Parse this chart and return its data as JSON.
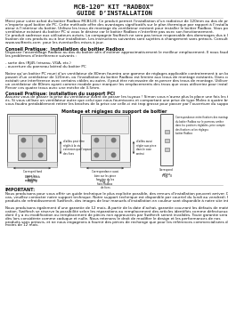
{
  "title1": "MCB-120™ KIT “RADBOX”",
  "title2": "GUIDE D’INSTALLATION",
  "bg_color": "#ffffff",
  "text_color": "#111111",
  "body_lines": [
    "Merci pour votre achat du boitier Radbox MCB120. Ce produit permet l’installation d’un radiateur de 120mm au dos de pratiquement",
    "n’importe quel boitier de PC. Cette méthode offre des avantages significatifs sur le plan thermique par rapport à l’installation du radi-",
    "ateur à l’intérieur du boitier. Utilisez les trous de montage du ventilateur existant pour installer le boitier Radbox. Vous pouvez laisser le",
    "ventilateur existant du boitier PC si vous le désirez car le boitier Radbox n’interfère pas avec son fonctionnement.",
    "Ce produit sadresse aux utilisateurs avisés. La compagnie Swiftech ne sera pas tenue responsable des dommages dus à l’uti-",
    "lisation de ces produits ou à leur installation. Les instructions suivantes sont sujettes à changement sans préavis. Consultez notre site",
    "www.swiftnets.com  pour les éventuelles mises à jour."
  ],
  "conseil1_title": "Conseil Pratique:  Installation du boitier Radbox",
  "conseil1_lines": [
    "Disposez l’assemblage Radbox au dos du boitier afin d’estimer approximativement le meilleur emplacement. Il nous faudra considérer",
    "les problèmes d’interférence suivants :",
    "",
    "- sorte des (RJ45 (réseau, VGA, etc.)",
    "- ouverture du panneau latéral du boitier PC",
    "",
    "Notez qu’un boitier PC muni d’un ventilateur de 80mm fournira une gamme de réglages applicable contrairement à un boitier dis-",
    "posant d’un ventilateur de 120mm, où l’installation du boitier Radbox est limitée aux trous de montage existants. Dans ce cas, s’il",
    "existait une interférence avec certains câbles ou autre, il peut être nécessaire de re-percer des trous de montage. Utiliser pour ce faire",
    "un ventilateur de 80mm ayant comme modale pour marquer les emplacements des trous que vous utiliseriez pour installer le boitier Radbox.",
    "Percer ces quatre trous avec une mèche de 3.5mm."
  ],
  "conseil2_title": "Conseil Pratique: installation du support PCI",
  "conseil2_lines": [
    "Assurez vous de passer la prise du ventilateur avant de passer les tuyaux ! Simon vous n’aurez plus la place une fois les tuyaux install-",
    "és. Si vous utilisez un ventilateur autre que celui que nous fournissons et comportant une prise de type Molex à quatre broches, il",
    "vous faudra préalablement retirer les broches de la prise car celle-ci est trop grosse pour passer par l’ouverture du support PCI."
  ],
  "diagram_title": "Montage et réglages du support de boitier",
  "fig1_label": "Fig. 1",
  "fig2_label": "Fig. 2",
  "fig3_label": "Fig. 3",
  "fig1_note_right": "d’ailleu peut être\nréglés à la vis\nextension que l’espace\ndes fixes",
  "fig1_note_bottom": "Correspnd fond\npour les\nfixation",
  "fig1_note_bottom2": "Bien à outils\nconvenient",
  "fig2_note_right": "d’ailleu aussi\nrégler aux pince\ndans le case\ncontrui",
  "fig2_note_bottom": "Correspondance aussi\nbien sur les pince\nfonction de les\nfixes Radbox\nde fixes",
  "fig3_note_top": "Correspondance entre fixations des montages\ndu boitier Radbox sur le panneau arrière\ndans les positions réglables, prise compte\ndes fixations selon réglages\nboitier Radbox",
  "fig3_note_bottom": "Correspond\noutput",
  "important_title": "IMPORTANT:",
  "important_lines": [
    "Nous produisons pour vous offrir un guide technique le plus explicite possible, des erreurs d’installation peuvent arriver. Dans ce",
    "cas, veuillez contacter notre support technque. Notre support technique est disponible par courriel du lundi au vendredi. Pour les",
    "produits de refroidissement Swiftech, des images de leur manuels d’installation en couleur sont disponible à notre site intenet.",
    "",
    "Nous produisons également d’une garantie de 12 mois. A partir de la date d’achat, garantie couvrant les défauts de matériaux ou de fabri-",
    "cation. Swiftech se réserve la possibilité selon les réparations au remplacement des articles identifiés comme défectueux. Les garanties",
    "dont il y a eu modification ou remplacement de pièces non approuvées par Swiftech seront invalides. Toute garantie sera",
    "dès lors considérée comme caduque et nulle. Nous retenons le droit de modifier le design et les performances de nos",
    "produits sans préavis, et ne nous engageons à fournir des pièces de rechange que pour les références commercialisées depuis",
    "moins de 12 mois."
  ]
}
